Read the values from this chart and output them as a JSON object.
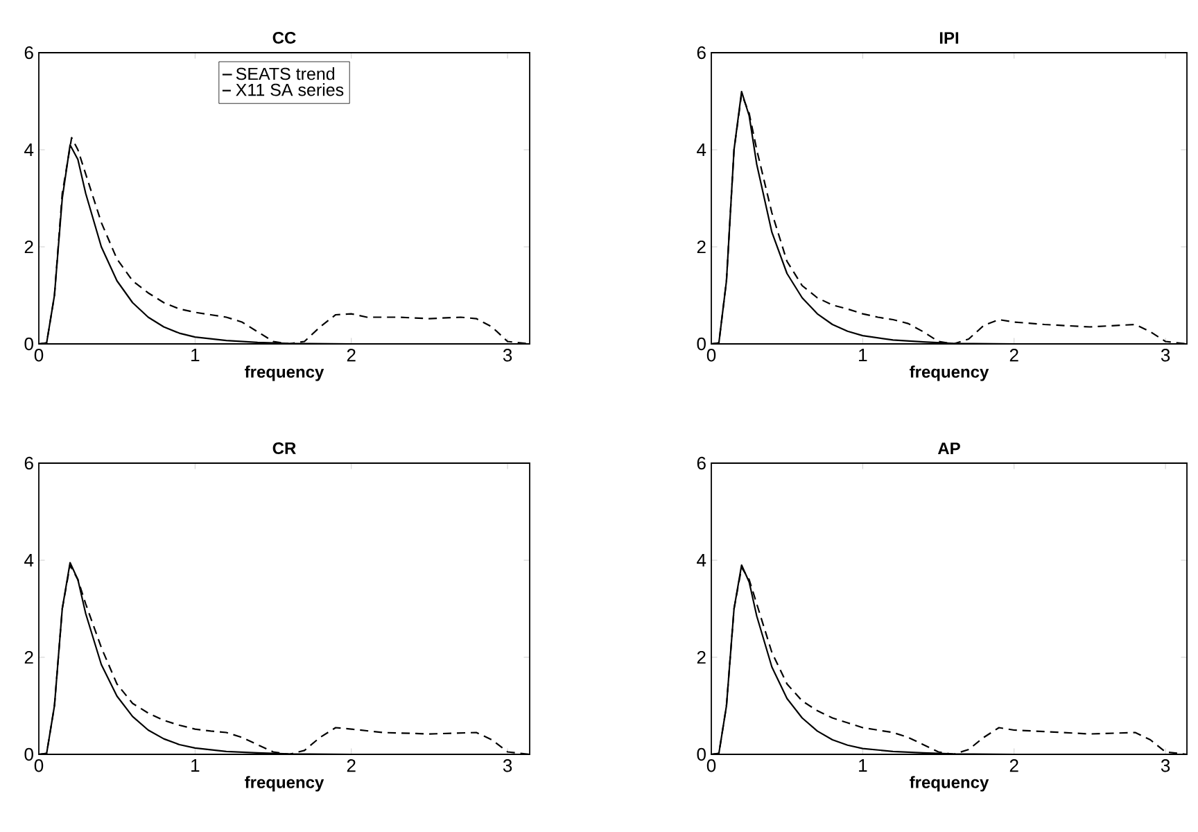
{
  "chart_data": [
    {
      "type": "line",
      "title": "CC",
      "xlabel": "frequency",
      "xlim": [
        0,
        3.1416
      ],
      "xticks": [
        0,
        1,
        2,
        3
      ],
      "ylim": [
        0,
        6
      ],
      "yticks": [
        0,
        2,
        4,
        6
      ],
      "legend": "top",
      "series": [
        {
          "name": "SEATS trend",
          "color": "#000000",
          "line_style": "solid",
          "x": [
            0,
            0.05,
            0.1,
            0.15,
            0.2,
            0.25,
            0.3,
            0.4,
            0.5,
            0.6,
            0.7,
            0.8,
            0.9,
            1.0,
            1.2,
            1.4,
            1.6,
            2.0,
            3.1416
          ],
          "values": [
            0,
            0.02,
            1.0,
            3.0,
            4.1,
            3.8,
            3.1,
            2.0,
            1.3,
            0.85,
            0.55,
            0.35,
            0.22,
            0.14,
            0.07,
            0.03,
            0.01,
            0,
            0
          ]
        },
        {
          "name": "X11 SA series",
          "color": "#000000",
          "line_style": "dashed",
          "x": [
            0,
            0.05,
            0.1,
            0.15,
            0.21,
            0.25,
            0.3,
            0.4,
            0.5,
            0.6,
            0.7,
            0.8,
            0.9,
            1.0,
            1.1,
            1.2,
            1.3,
            1.4,
            1.5,
            1.6,
            1.7,
            1.8,
            1.9,
            2.0,
            2.1,
            2.3,
            2.5,
            2.7,
            2.8,
            2.9,
            3.0,
            3.1416
          ],
          "values": [
            0,
            0.02,
            1.0,
            3.1,
            4.25,
            4.0,
            3.5,
            2.5,
            1.75,
            1.3,
            1.05,
            0.85,
            0.72,
            0.65,
            0.6,
            0.55,
            0.45,
            0.25,
            0.05,
            0,
            0.05,
            0.35,
            0.6,
            0.62,
            0.55,
            0.55,
            0.52,
            0.55,
            0.52,
            0.35,
            0.05,
            0
          ]
        }
      ]
    },
    {
      "type": "line",
      "title": "IPI",
      "xlabel": "frequency",
      "xlim": [
        0,
        3.1416
      ],
      "xticks": [
        0,
        1,
        2,
        3
      ],
      "ylim": [
        0,
        6
      ],
      "yticks": [
        0,
        2,
        4,
        6
      ],
      "series": [
        {
          "color": "#000000",
          "line_style": "solid",
          "x": [
            0,
            0.05,
            0.1,
            0.15,
            0.2,
            0.25,
            0.3,
            0.4,
            0.5,
            0.6,
            0.7,
            0.8,
            0.9,
            1.0,
            1.2,
            1.4,
            1.6,
            2.0,
            3.1416
          ],
          "values": [
            0,
            0.02,
            1.3,
            4.0,
            5.2,
            4.7,
            3.7,
            2.3,
            1.45,
            0.95,
            0.62,
            0.4,
            0.26,
            0.17,
            0.08,
            0.04,
            0.01,
            0,
            0
          ]
        },
        {
          "color": "#000000",
          "line_style": "dashed",
          "x": [
            0,
            0.05,
            0.1,
            0.15,
            0.2,
            0.25,
            0.3,
            0.4,
            0.5,
            0.6,
            0.7,
            0.8,
            0.9,
            1.0,
            1.1,
            1.2,
            1.3,
            1.4,
            1.5,
            1.6,
            1.7,
            1.8,
            1.9,
            2.0,
            2.2,
            2.5,
            2.8,
            2.9,
            3.0,
            3.1416
          ],
          "values": [
            0,
            0.02,
            1.3,
            4.0,
            5.15,
            4.75,
            4.0,
            2.7,
            1.7,
            1.2,
            0.95,
            0.8,
            0.72,
            0.62,
            0.55,
            0.5,
            0.42,
            0.25,
            0.05,
            0,
            0.1,
            0.38,
            0.5,
            0.45,
            0.4,
            0.35,
            0.4,
            0.25,
            0.05,
            0
          ]
        }
      ]
    },
    {
      "type": "line",
      "title": "CR",
      "xlabel": "frequency",
      "xlim": [
        0,
        3.1416
      ],
      "xticks": [
        0,
        1,
        2,
        3
      ],
      "ylim": [
        0,
        6
      ],
      "yticks": [
        0,
        2,
        4,
        6
      ],
      "series": [
        {
          "color": "#000000",
          "line_style": "solid",
          "x": [
            0,
            0.05,
            0.1,
            0.15,
            0.2,
            0.25,
            0.3,
            0.4,
            0.5,
            0.6,
            0.7,
            0.8,
            0.9,
            1.0,
            1.2,
            1.4,
            1.6,
            2.0,
            3.1416
          ],
          "values": [
            0,
            0.02,
            1.0,
            3.0,
            3.95,
            3.6,
            2.9,
            1.85,
            1.2,
            0.78,
            0.5,
            0.32,
            0.2,
            0.13,
            0.06,
            0.03,
            0.01,
            0,
            0
          ]
        },
        {
          "color": "#000000",
          "line_style": "dashed",
          "x": [
            0,
            0.05,
            0.1,
            0.15,
            0.2,
            0.25,
            0.3,
            0.4,
            0.5,
            0.6,
            0.7,
            0.8,
            0.9,
            1.0,
            1.1,
            1.2,
            1.3,
            1.4,
            1.5,
            1.6,
            1.7,
            1.8,
            1.9,
            2.0,
            2.2,
            2.5,
            2.8,
            2.9,
            3.0,
            3.1416
          ],
          "values": [
            0,
            0.02,
            1.0,
            3.0,
            3.9,
            3.6,
            3.1,
            2.2,
            1.45,
            1.05,
            0.85,
            0.7,
            0.6,
            0.52,
            0.48,
            0.45,
            0.35,
            0.2,
            0.05,
            0,
            0.08,
            0.35,
            0.55,
            0.52,
            0.45,
            0.42,
            0.45,
            0.3,
            0.05,
            0
          ]
        }
      ]
    },
    {
      "type": "line",
      "title": "AP",
      "xlabel": "frequency",
      "xlim": [
        0,
        3.1416
      ],
      "xticks": [
        0,
        1,
        2,
        3
      ],
      "ylim": [
        0,
        6
      ],
      "yticks": [
        0,
        2,
        4,
        6
      ],
      "series": [
        {
          "color": "#000000",
          "line_style": "solid",
          "x": [
            0,
            0.05,
            0.1,
            0.15,
            0.2,
            0.25,
            0.3,
            0.4,
            0.5,
            0.6,
            0.7,
            0.8,
            0.9,
            1.0,
            1.2,
            1.4,
            1.6,
            2.0,
            3.1416
          ],
          "values": [
            0,
            0.02,
            1.0,
            3.0,
            3.9,
            3.55,
            2.85,
            1.8,
            1.15,
            0.75,
            0.48,
            0.3,
            0.19,
            0.12,
            0.06,
            0.03,
            0.01,
            0,
            0
          ]
        },
        {
          "color": "#000000",
          "line_style": "dashed",
          "x": [
            0,
            0.05,
            0.1,
            0.15,
            0.2,
            0.25,
            0.3,
            0.4,
            0.5,
            0.6,
            0.7,
            0.8,
            0.9,
            1.0,
            1.1,
            1.2,
            1.3,
            1.4,
            1.5,
            1.6,
            1.7,
            1.8,
            1.9,
            2.0,
            2.2,
            2.5,
            2.8,
            2.9,
            3.0,
            3.1416
          ],
          "values": [
            0,
            0.02,
            1.0,
            3.0,
            3.85,
            3.6,
            3.1,
            2.1,
            1.45,
            1.1,
            0.9,
            0.75,
            0.65,
            0.55,
            0.5,
            0.45,
            0.35,
            0.2,
            0.05,
            0,
            0.1,
            0.35,
            0.55,
            0.5,
            0.47,
            0.42,
            0.45,
            0.3,
            0.05,
            0
          ]
        }
      ]
    }
  ]
}
